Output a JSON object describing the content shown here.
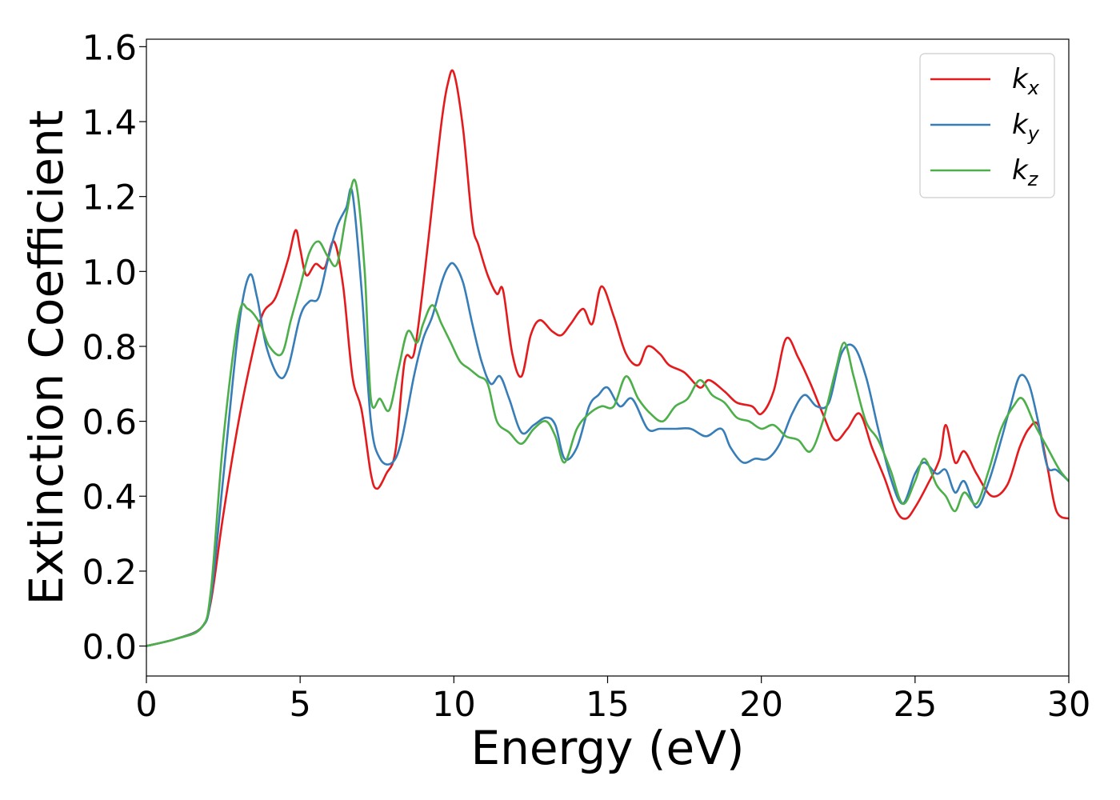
{
  "chart_data": {
    "type": "line",
    "xlabel": "Energy (eV)",
    "ylabel": "Extinction Coefficient",
    "xlim": [
      0,
      30
    ],
    "ylim": [
      -0.08,
      1.62
    ],
    "xticks": [
      0,
      5,
      10,
      15,
      20,
      25,
      30
    ],
    "xtick_labels": [
      "0",
      "5",
      "10",
      "15",
      "20",
      "25",
      "30"
    ],
    "yticks": [
      0.0,
      0.2,
      0.4,
      0.6,
      0.8,
      1.0,
      1.2,
      1.4,
      1.6
    ],
    "ytick_labels": [
      "0.0",
      "0.2",
      "0.4",
      "0.6",
      "0.8",
      "1.0",
      "1.2",
      "1.4",
      "1.6"
    ],
    "grid": false,
    "legend_position": "top-right",
    "series": [
      {
        "name": "k",
        "sub": "x",
        "color": "#e41a1c",
        "x": [
          0,
          1,
          1.8,
          2.1,
          2.5,
          3.0,
          3.5,
          3.8,
          4.2,
          4.6,
          4.85,
          5.0,
          5.2,
          5.5,
          5.8,
          6.1,
          6.4,
          6.7,
          7.0,
          7.3,
          7.5,
          7.8,
          8.1,
          8.4,
          8.7,
          9.0,
          9.3,
          9.6,
          9.8,
          10.0,
          10.3,
          10.6,
          10.8,
          11.1,
          11.4,
          11.6,
          11.9,
          12.2,
          12.5,
          12.8,
          13.2,
          13.5,
          13.8,
          14.2,
          14.5,
          14.8,
          15.2,
          15.6,
          16.0,
          16.3,
          16.7,
          17.0,
          17.5,
          18.0,
          18.3,
          18.8,
          19.2,
          19.7,
          20.0,
          20.4,
          20.8,
          21.2,
          21.6,
          22.0,
          22.4,
          22.8,
          23.2,
          23.6,
          24.0,
          24.4,
          24.7,
          25.0,
          25.4,
          25.8,
          26.0,
          26.3,
          26.6,
          27.0,
          27.5,
          28.0,
          28.4,
          28.7,
          29.0,
          29.3,
          29.6,
          30.0
        ],
        "y": [
          0,
          0.02,
          0.05,
          0.12,
          0.35,
          0.6,
          0.8,
          0.89,
          0.93,
          1.03,
          1.11,
          1.06,
          0.99,
          1.02,
          1.01,
          1.08,
          0.96,
          0.72,
          0.63,
          0.46,
          0.42,
          0.46,
          0.52,
          0.76,
          0.78,
          0.96,
          1.18,
          1.4,
          1.5,
          1.53,
          1.38,
          1.13,
          1.07,
          0.99,
          0.94,
          0.95,
          0.78,
          0.72,
          0.83,
          0.87,
          0.84,
          0.83,
          0.86,
          0.9,
          0.86,
          0.96,
          0.88,
          0.78,
          0.75,
          0.8,
          0.78,
          0.75,
          0.73,
          0.69,
          0.71,
          0.68,
          0.65,
          0.64,
          0.62,
          0.68,
          0.82,
          0.77,
          0.7,
          0.62,
          0.55,
          0.58,
          0.62,
          0.53,
          0.45,
          0.36,
          0.34,
          0.37,
          0.43,
          0.5,
          0.59,
          0.49,
          0.52,
          0.46,
          0.4,
          0.43,
          0.53,
          0.58,
          0.59,
          0.48,
          0.36,
          0.34
        ]
      },
      {
        "name": "k",
        "sub": "y",
        "color": "#377eb8",
        "x": [
          0,
          1,
          1.8,
          2.1,
          2.5,
          3.0,
          3.35,
          3.6,
          3.9,
          4.3,
          4.6,
          5.0,
          5.3,
          5.6,
          5.9,
          6.2,
          6.5,
          6.7,
          7.0,
          7.3,
          7.6,
          8.0,
          8.3,
          8.7,
          9.0,
          9.3,
          9.6,
          9.8,
          10.0,
          10.3,
          10.6,
          10.9,
          11.2,
          11.5,
          11.8,
          12.2,
          12.6,
          13.0,
          13.3,
          13.6,
          14.0,
          14.4,
          14.7,
          15.0,
          15.4,
          15.8,
          16.3,
          16.7,
          17.2,
          17.7,
          18.2,
          18.7,
          19.0,
          19.4,
          19.8,
          20.2,
          20.6,
          21.0,
          21.4,
          21.8,
          22.2,
          22.6,
          23.0,
          23.4,
          23.8,
          24.2,
          24.6,
          25.0,
          25.3,
          25.7,
          26.0,
          26.3,
          26.6,
          27.0,
          27.4,
          27.8,
          28.1,
          28.4,
          28.7,
          29.0,
          29.3,
          29.6,
          30.0
        ],
        "y": [
          0,
          0.02,
          0.05,
          0.13,
          0.45,
          0.85,
          0.99,
          0.93,
          0.8,
          0.72,
          0.74,
          0.88,
          0.92,
          0.93,
          1.03,
          1.12,
          1.17,
          1.21,
          0.95,
          0.6,
          0.5,
          0.49,
          0.55,
          0.72,
          0.82,
          0.88,
          0.97,
          1.01,
          1.02,
          0.97,
          0.86,
          0.76,
          0.7,
          0.72,
          0.66,
          0.57,
          0.59,
          0.61,
          0.59,
          0.5,
          0.53,
          0.64,
          0.67,
          0.69,
          0.64,
          0.66,
          0.58,
          0.58,
          0.58,
          0.58,
          0.56,
          0.58,
          0.53,
          0.49,
          0.5,
          0.5,
          0.54,
          0.62,
          0.67,
          0.64,
          0.65,
          0.78,
          0.8,
          0.72,
          0.58,
          0.45,
          0.38,
          0.46,
          0.49,
          0.46,
          0.47,
          0.41,
          0.44,
          0.37,
          0.44,
          0.55,
          0.64,
          0.72,
          0.7,
          0.6,
          0.48,
          0.47,
          0.44
        ]
      },
      {
        "name": "k",
        "sub": "z",
        "color": "#4daf4a",
        "x": [
          0,
          1,
          1.8,
          2.1,
          2.5,
          3.0,
          3.3,
          3.7,
          4.0,
          4.4,
          4.7,
          5.0,
          5.3,
          5.6,
          5.9,
          6.2,
          6.5,
          6.8,
          7.1,
          7.3,
          7.6,
          7.9,
          8.2,
          8.5,
          8.8,
          9.0,
          9.3,
          9.6,
          9.9,
          10.2,
          10.5,
          10.8,
          11.1,
          11.4,
          11.8,
          12.2,
          12.6,
          13.0,
          13.3,
          13.6,
          14.0,
          14.4,
          14.8,
          15.2,
          15.6,
          16.0,
          16.4,
          16.8,
          17.2,
          17.6,
          18.0,
          18.4,
          18.8,
          19.2,
          19.6,
          20.0,
          20.4,
          20.8,
          21.2,
          21.6,
          22.0,
          22.4,
          22.7,
          23.0,
          23.4,
          23.8,
          24.2,
          24.6,
          25.0,
          25.3,
          25.7,
          26.0,
          26.3,
          26.6,
          27.0,
          27.4,
          27.8,
          28.2,
          28.5,
          28.9,
          29.3,
          29.7,
          30.0
        ],
        "y": [
          0,
          0.02,
          0.05,
          0.15,
          0.55,
          0.88,
          0.9,
          0.86,
          0.8,
          0.78,
          0.87,
          0.96,
          1.05,
          1.08,
          1.04,
          1.02,
          1.15,
          1.24,
          1.0,
          0.66,
          0.66,
          0.63,
          0.74,
          0.84,
          0.81,
          0.86,
          0.91,
          0.86,
          0.81,
          0.76,
          0.74,
          0.72,
          0.7,
          0.6,
          0.57,
          0.54,
          0.58,
          0.6,
          0.56,
          0.49,
          0.58,
          0.62,
          0.64,
          0.64,
          0.72,
          0.66,
          0.62,
          0.6,
          0.64,
          0.66,
          0.71,
          0.67,
          0.65,
          0.61,
          0.6,
          0.58,
          0.59,
          0.56,
          0.55,
          0.52,
          0.6,
          0.73,
          0.81,
          0.72,
          0.6,
          0.55,
          0.47,
          0.38,
          0.44,
          0.5,
          0.43,
          0.4,
          0.36,
          0.41,
          0.38,
          0.47,
          0.58,
          0.64,
          0.66,
          0.59,
          0.53,
          0.47,
          0.44
        ]
      }
    ]
  }
}
